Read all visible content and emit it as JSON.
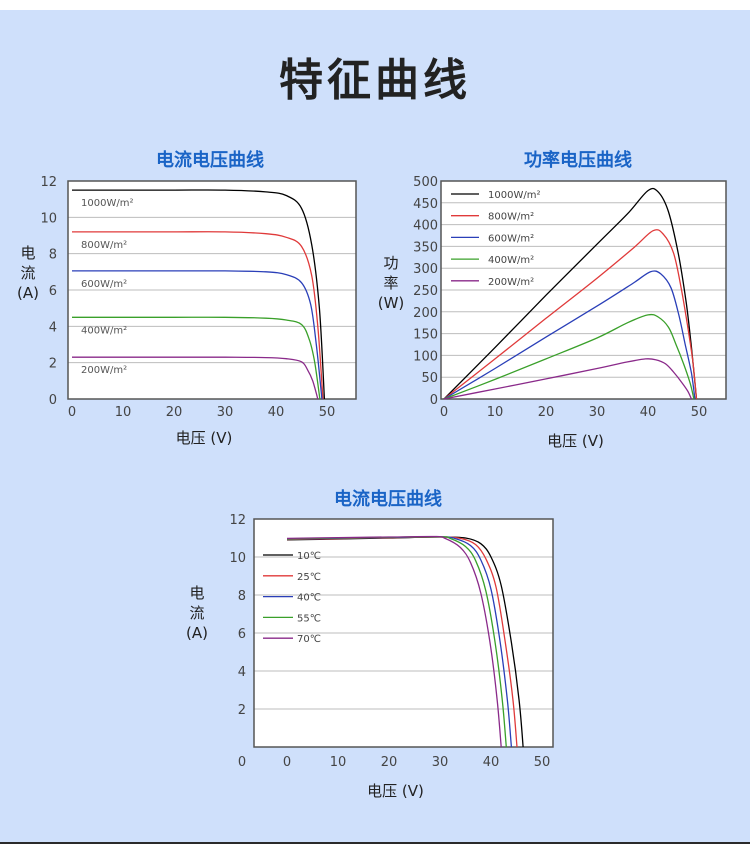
{
  "page_title": "特征曲线",
  "chart_data": [
    {
      "type": "line",
      "title": "电流电压曲线",
      "xlabel": "电压 (V)",
      "ylabel": [
        "电",
        "流",
        "(A)"
      ],
      "xlim": [
        0,
        55
      ],
      "ylim": [
        0,
        12
      ],
      "xticks": [
        "0",
        "10",
        "20",
        "30",
        "40",
        "50"
      ],
      "yticks": [
        "0",
        "2",
        "4",
        "6",
        "8",
        "10",
        "12"
      ],
      "grid": "horizontal",
      "series": [
        {
          "name": "1000W/m²",
          "color": "#000000",
          "x": [
            0,
            10,
            20,
            30,
            38,
            42,
            45,
            47,
            48.5,
            49.5
          ],
          "y": [
            11.5,
            11.5,
            11.5,
            11.5,
            11.4,
            11.2,
            10.5,
            8.5,
            5,
            0
          ]
        },
        {
          "name": "800W/m²",
          "color": "#e03a3a",
          "x": [
            0,
            10,
            20,
            30,
            38,
            42,
            45,
            47,
            48.2,
            49.2
          ],
          "y": [
            9.2,
            9.2,
            9.2,
            9.2,
            9.1,
            8.9,
            8.4,
            6.8,
            4,
            0
          ]
        },
        {
          "name": "600W/m²",
          "color": "#2a3fb8",
          "x": [
            0,
            10,
            20,
            30,
            38,
            42,
            45,
            46.8,
            47.9,
            49
          ],
          "y": [
            7.05,
            7.05,
            7.05,
            7.05,
            7.0,
            6.85,
            6.4,
            5.2,
            3,
            0
          ]
        },
        {
          "name": "400W/m²",
          "color": "#3aa02a",
          "x": [
            0,
            10,
            20,
            30,
            38,
            42,
            45,
            46.5,
            47.6,
            48.6
          ],
          "y": [
            4.5,
            4.5,
            4.5,
            4.5,
            4.45,
            4.35,
            4.1,
            3.3,
            2,
            0
          ]
        },
        {
          "name": "200W/m²",
          "color": "#8a2a8a",
          "x": [
            0,
            10,
            20,
            30,
            38,
            42,
            45,
            46.2,
            47.2,
            48.2
          ],
          "y": [
            2.3,
            2.3,
            2.3,
            2.3,
            2.28,
            2.22,
            2.05,
            1.6,
            1,
            0
          ]
        }
      ]
    },
    {
      "type": "line",
      "title": "功率电压曲线",
      "xlabel": "电压 (V)",
      "ylabel": [
        "功",
        "率",
        "(W)"
      ],
      "xlim": [
        0,
        55
      ],
      "ylim": [
        0,
        500
      ],
      "xticks": [
        "0",
        "10",
        "20",
        "30",
        "40",
        "50"
      ],
      "yticks": [
        "0",
        "50",
        "100",
        "150",
        "200",
        "250",
        "300",
        "350",
        "400",
        "450",
        "500"
      ],
      "grid": "horizontal",
      "legend": "top-left",
      "series": [
        {
          "name": "1000W/m²",
          "color": "#000000",
          "x": [
            0,
            10,
            20,
            30,
            36,
            40,
            42,
            44,
            46,
            47.5,
            48.5,
            49.5
          ],
          "y": [
            0,
            118,
            238,
            355,
            425,
            478,
            475,
            430,
            330,
            220,
            120,
            0
          ]
        },
        {
          "name": "800W/m²",
          "color": "#e03a3a",
          "x": [
            0,
            10,
            20,
            30,
            37,
            41,
            43,
            45,
            46.5,
            47.8,
            48.8,
            49.5
          ],
          "y": [
            0,
            92,
            185,
            277,
            345,
            386,
            378,
            335,
            255,
            165,
            85,
            0
          ]
        },
        {
          "name": "600W/m²",
          "color": "#2a3fb8",
          "x": [
            0,
            10,
            20,
            30,
            37,
            40.5,
            42.5,
            44.5,
            46,
            47.3,
            48.5,
            49.2
          ],
          "y": [
            0,
            70,
            142,
            213,
            265,
            292,
            287,
            255,
            195,
            125,
            60,
            0
          ]
        },
        {
          "name": "400W/m²",
          "color": "#3aa02a",
          "x": [
            0,
            10,
            20,
            30,
            36,
            40,
            42,
            44,
            45.5,
            47,
            48.3,
            49
          ],
          "y": [
            0,
            45,
            92,
            140,
            175,
            193,
            188,
            165,
            125,
            80,
            35,
            0
          ]
        },
        {
          "name": "200W/m²",
          "color": "#8a2a8a",
          "x": [
            0,
            10,
            20,
            30,
            36,
            39.5,
            41.5,
            43.5,
            45,
            46.5,
            47.8,
            48.5
          ],
          "y": [
            0,
            23,
            46,
            70,
            85,
            92,
            90,
            80,
            62,
            40,
            18,
            0
          ]
        }
      ]
    },
    {
      "type": "line",
      "title": "电流电压曲线",
      "xlabel": "电压 (V)",
      "ylabel": [
        "电",
        "流",
        "(A)"
      ],
      "xlim": [
        0,
        55
      ],
      "ylim": [
        0,
        12
      ],
      "xticks": [
        "0",
        "10",
        "20",
        "30",
        "40",
        "50"
      ],
      "x_extra_tick": "0",
      "yticks": [
        "2",
        "4",
        "6",
        "8",
        "10",
        "12"
      ],
      "grid": "horizontal",
      "legend": "left",
      "series": [
        {
          "name": "10℃",
          "color": "#000000",
          "x": [
            0,
            10,
            20,
            30,
            35,
            38,
            40,
            42,
            44,
            45.5,
            46.3
          ],
          "y": [
            10.9,
            10.95,
            11.0,
            11.05,
            11.0,
            10.7,
            10.0,
            8.5,
            5.5,
            2.5,
            0
          ]
        },
        {
          "name": "25℃",
          "color": "#e03a3a",
          "x": [
            0,
            10,
            20,
            30,
            34,
            37,
            39,
            41,
            42.8,
            44.3,
            45.1
          ],
          "y": [
            10.92,
            10.97,
            11.02,
            11.05,
            10.98,
            10.65,
            9.9,
            8.4,
            5.5,
            2.5,
            0
          ]
        },
        {
          "name": "40℃",
          "color": "#2a3fb8",
          "x": [
            0,
            10,
            20,
            30,
            33,
            36,
            38,
            40,
            41.8,
            43.2,
            44
          ],
          "y": [
            10.94,
            10.99,
            11.03,
            11.06,
            10.97,
            10.6,
            9.85,
            8.3,
            5.5,
            2.5,
            0
          ]
        },
        {
          "name": "55℃",
          "color": "#3aa02a",
          "x": [
            0,
            10,
            20,
            30,
            32,
            35,
            37,
            39,
            40.8,
            42.2,
            43
          ],
          "y": [
            10.96,
            11.0,
            11.04,
            11.07,
            10.98,
            10.55,
            9.8,
            8.2,
            5.5,
            2.5,
            0
          ]
        },
        {
          "name": "70℃",
          "color": "#8a2a8a",
          "x": [
            0,
            10,
            20,
            29,
            31,
            34,
            36,
            38,
            39.8,
            41.2,
            42
          ],
          "y": [
            10.98,
            11.02,
            11.05,
            11.08,
            10.98,
            10.5,
            9.7,
            8.1,
            5.5,
            2.5,
            0
          ]
        }
      ]
    }
  ]
}
